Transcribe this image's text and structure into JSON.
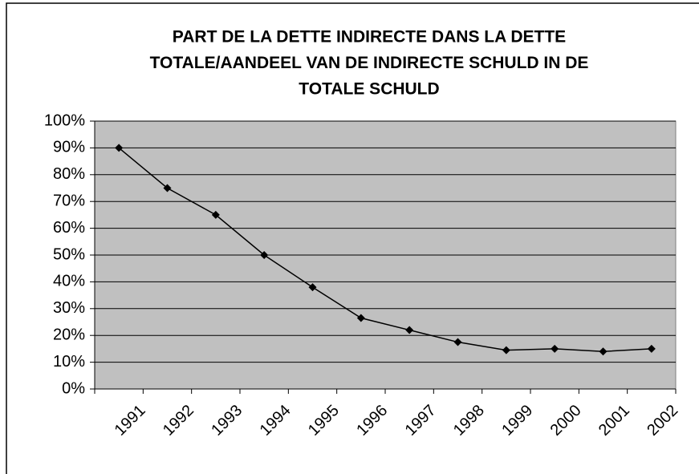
{
  "chart_data": {
    "type": "line",
    "title": [
      "PART DE LA DETTE INDIRECTE DANS LA DETTE",
      "TOTALE/AANDEEL VAN DE INDIRECTE SCHULD IN DE",
      "TOTALE SCHULD"
    ],
    "categories": [
      "1991",
      "1992",
      "1993",
      "1994",
      "1995",
      "1996",
      "1997",
      "1998",
      "1999",
      "2000",
      "2001",
      "2002"
    ],
    "series": [
      {
        "color": "#000000",
        "values": [
          90,
          75,
          65,
          50,
          38,
          26.5,
          22,
          17.5,
          14.5,
          15,
          14,
          15
        ]
      }
    ],
    "ylim": [
      0,
      100
    ],
    "yticks": [
      {
        "value": 0,
        "label": "0%"
      },
      {
        "value": 10,
        "label": "10%"
      },
      {
        "value": 20,
        "label": "20%"
      },
      {
        "value": 30,
        "label": "30%"
      },
      {
        "value": 40,
        "label": "40%"
      },
      {
        "value": 50,
        "label": "50%"
      },
      {
        "value": 60,
        "label": "60%"
      },
      {
        "value": 70,
        "label": "70%"
      },
      {
        "value": 80,
        "label": "80%"
      },
      {
        "value": 90,
        "label": "90%"
      },
      {
        "value": 100,
        "label": "100%"
      }
    ],
    "grid": true,
    "plot_background": "#c0c0c0"
  }
}
